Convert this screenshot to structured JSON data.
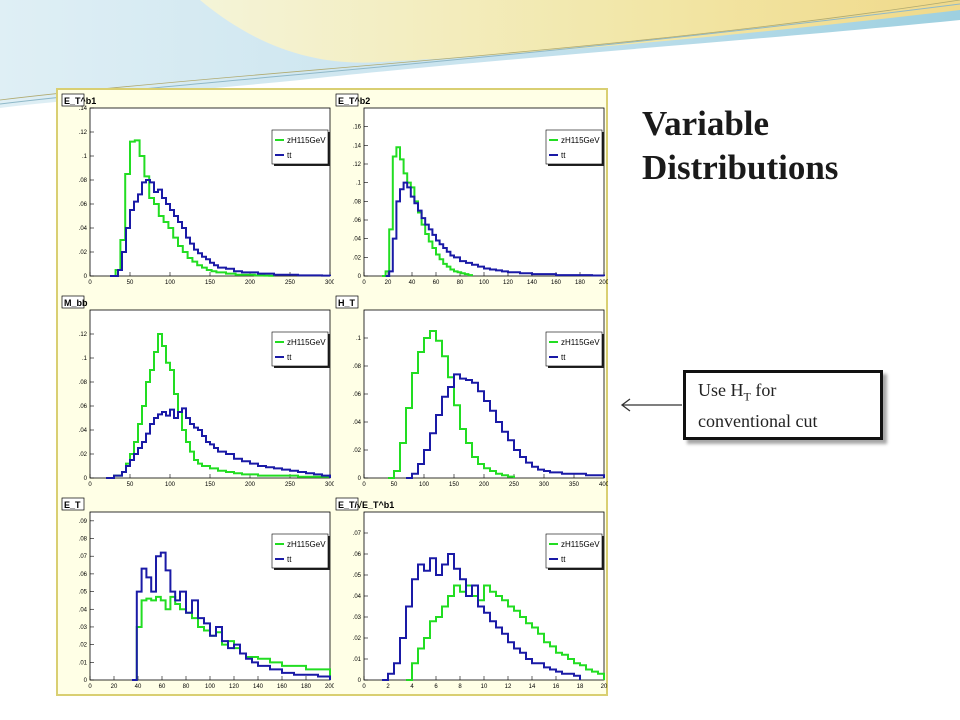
{
  "slide": {
    "title_line1": "Variable",
    "title_line2": "Distributions",
    "callout_pre": "Use H",
    "callout_sub": "T",
    "callout_post": " for",
    "callout_line2": "conventional cut",
    "colors": {
      "signal": "#22dd22",
      "background": "#1a1aa6",
      "panel_bg": "#ffffe6",
      "panel_border": "#d9cf72"
    }
  },
  "chart_data": [
    {
      "type": "line",
      "title": "E_T^b1",
      "xlim": [
        0,
        300
      ],
      "ylim": [
        0,
        0.14
      ],
      "xticks": [
        0,
        50,
        100,
        150,
        200,
        250,
        300
      ],
      "yticks": [
        0,
        0.02,
        0.04,
        0.06,
        0.08,
        0.1,
        0.12,
        0.14
      ],
      "legend": [
        "zH115GeV",
        "tt"
      ],
      "legend_position": "top-right",
      "series": [
        {
          "name": "zH115GeV",
          "x": [
            25,
            32,
            38,
            44,
            50,
            56,
            62,
            68,
            74,
            80,
            86,
            92,
            98,
            104,
            110,
            116,
            122,
            128,
            134,
            140,
            146,
            152,
            158,
            164,
            170,
            176,
            182,
            188,
            194,
            200,
            206,
            212,
            218,
            224,
            230
          ],
          "values": [
            0,
            0.005,
            0.03,
            0.085,
            0.112,
            0.113,
            0.1,
            0.083,
            0.065,
            0.06,
            0.05,
            0.045,
            0.04,
            0.032,
            0.025,
            0.02,
            0.015,
            0.012,
            0.009,
            0.007,
            0.005,
            0.004,
            0.003,
            0.003,
            0.002,
            0.002,
            0.001,
            0.001,
            0.001,
            0.001,
            0.0005,
            0.0005,
            0.0003,
            0.0002,
            0
          ]
        },
        {
          "name": "tt",
          "x": [
            25,
            35,
            40,
            45,
            50,
            55,
            60,
            65,
            70,
            75,
            80,
            85,
            90,
            95,
            100,
            105,
            110,
            115,
            120,
            125,
            130,
            135,
            140,
            145,
            150,
            155,
            160,
            170,
            180,
            190,
            200,
            210,
            220,
            230,
            240,
            250,
            260,
            270,
            280,
            290,
            300
          ],
          "values": [
            0,
            0.005,
            0.02,
            0.04,
            0.055,
            0.062,
            0.068,
            0.078,
            0.08,
            0.078,
            0.07,
            0.072,
            0.065,
            0.06,
            0.055,
            0.05,
            0.045,
            0.04,
            0.032,
            0.027,
            0.022,
            0.019,
            0.016,
            0.014,
            0.011,
            0.009,
            0.007,
            0.006,
            0.004,
            0.003,
            0.003,
            0.002,
            0.002,
            0.001,
            0.001,
            0.001,
            0.0005,
            0.0005,
            0.0005,
            0.0003,
            0
          ]
        }
      ]
    },
    {
      "type": "line",
      "title": "E_T^b2",
      "xlim": [
        0,
        200
      ],
      "ylim": [
        0,
        0.18
      ],
      "xticks": [
        0,
        20,
        40,
        60,
        80,
        100,
        120,
        140,
        160,
        180,
        200
      ],
      "yticks": [
        0,
        0.02,
        0.04,
        0.06,
        0.08,
        0.1,
        0.12,
        0.14,
        0.16
      ],
      "legend": [
        "zH115GeV",
        "tt"
      ],
      "legend_position": "top-right",
      "series": [
        {
          "name": "zH115GeV",
          "x": [
            15,
            18,
            21,
            24,
            27,
            30,
            33,
            36,
            39,
            42,
            45,
            48,
            51,
            54,
            57,
            60,
            63,
            66,
            69,
            72,
            75,
            78,
            81,
            84,
            87,
            90
          ],
          "values": [
            0,
            0.005,
            0.05,
            0.128,
            0.138,
            0.125,
            0.11,
            0.1,
            0.095,
            0.08,
            0.068,
            0.055,
            0.045,
            0.037,
            0.03,
            0.023,
            0.018,
            0.013,
            0.01,
            0.007,
            0.005,
            0.004,
            0.003,
            0.002,
            0.001,
            0
          ]
        },
        {
          "name": "tt",
          "x": [
            18,
            21,
            24,
            27,
            30,
            33,
            36,
            39,
            42,
            45,
            48,
            51,
            54,
            57,
            60,
            63,
            66,
            69,
            72,
            75,
            80,
            85,
            90,
            95,
            100,
            105,
            110,
            115,
            120,
            125,
            130,
            140,
            150,
            160,
            170,
            180,
            190,
            200
          ],
          "values": [
            0,
            0.005,
            0.04,
            0.08,
            0.093,
            0.1,
            0.095,
            0.085,
            0.078,
            0.07,
            0.062,
            0.055,
            0.05,
            0.044,
            0.038,
            0.034,
            0.03,
            0.026,
            0.022,
            0.02,
            0.016,
            0.014,
            0.012,
            0.01,
            0.008,
            0.007,
            0.006,
            0.005,
            0.004,
            0.004,
            0.003,
            0.002,
            0.002,
            0.001,
            0.001,
            0.001,
            0.0005,
            0
          ]
        }
      ]
    },
    {
      "type": "line",
      "title": "M_bb",
      "xlim": [
        0,
        300
      ],
      "ylim": [
        0,
        0.14
      ],
      "xticks": [
        0,
        50,
        100,
        150,
        200,
        250,
        300
      ],
      "yticks": [
        0,
        0.02,
        0.04,
        0.06,
        0.08,
        0.1,
        0.12
      ],
      "legend": [
        "zH115GeV",
        "tt"
      ],
      "legend_position": "top-right",
      "series": [
        {
          "name": "zH115GeV",
          "x": [
            20,
            30,
            40,
            45,
            50,
            55,
            60,
            65,
            70,
            75,
            80,
            85,
            90,
            95,
            100,
            105,
            110,
            115,
            120,
            125,
            130,
            135,
            140,
            150,
            160,
            170,
            180,
            190,
            200,
            210,
            220,
            230,
            240,
            260,
            280,
            300
          ],
          "values": [
            0,
            0.002,
            0.005,
            0.012,
            0.02,
            0.03,
            0.045,
            0.06,
            0.08,
            0.09,
            0.105,
            0.12,
            0.11,
            0.096,
            0.09,
            0.07,
            0.055,
            0.04,
            0.03,
            0.022,
            0.015,
            0.012,
            0.01,
            0.008,
            0.006,
            0.005,
            0.004,
            0.003,
            0.003,
            0.002,
            0.002,
            0.002,
            0.002,
            0.001,
            0.001,
            0
          ]
        },
        {
          "name": "tt",
          "x": [
            20,
            30,
            40,
            45,
            50,
            55,
            60,
            65,
            70,
            75,
            80,
            85,
            90,
            95,
            100,
            105,
            110,
            115,
            120,
            125,
            130,
            135,
            140,
            145,
            150,
            155,
            160,
            170,
            180,
            190,
            200,
            210,
            220,
            230,
            240,
            250,
            260,
            270,
            280,
            290,
            300
          ],
          "values": [
            0,
            0.002,
            0.005,
            0.01,
            0.015,
            0.02,
            0.025,
            0.03,
            0.037,
            0.045,
            0.05,
            0.053,
            0.055,
            0.052,
            0.057,
            0.05,
            0.055,
            0.058,
            0.05,
            0.045,
            0.042,
            0.04,
            0.035,
            0.03,
            0.028,
            0.025,
            0.022,
            0.02,
            0.016,
            0.014,
            0.012,
            0.01,
            0.009,
            0.008,
            0.007,
            0.006,
            0.005,
            0.004,
            0.003,
            0.002,
            0
          ]
        }
      ]
    },
    {
      "type": "line",
      "title": "H_T",
      "xlim": [
        0,
        400
      ],
      "ylim": [
        0,
        0.12
      ],
      "xticks": [
        0,
        50,
        100,
        150,
        200,
        250,
        300,
        350,
        400
      ],
      "yticks": [
        0,
        0.02,
        0.04,
        0.06,
        0.08,
        0.1
      ],
      "legend": [
        "zH115GeV",
        "tt"
      ],
      "legend_position": "top-right",
      "series": [
        {
          "name": "zH115GeV",
          "x": [
            40,
            50,
            60,
            70,
            80,
            90,
            100,
            110,
            120,
            130,
            140,
            150,
            160,
            170,
            180,
            190,
            200,
            210,
            220,
            230,
            240,
            250
          ],
          "values": [
            0,
            0.005,
            0.025,
            0.05,
            0.075,
            0.09,
            0.1,
            0.105,
            0.098,
            0.087,
            0.072,
            0.052,
            0.035,
            0.025,
            0.015,
            0.01,
            0.007,
            0.005,
            0.003,
            0.002,
            0.001,
            0
          ]
        },
        {
          "name": "tt",
          "x": [
            70,
            80,
            90,
            100,
            110,
            120,
            130,
            140,
            150,
            160,
            170,
            180,
            190,
            200,
            210,
            220,
            230,
            240,
            250,
            260,
            270,
            280,
            290,
            300,
            310,
            320,
            330,
            340,
            350,
            360,
            370,
            380,
            390,
            400
          ],
          "values": [
            0,
            0.003,
            0.01,
            0.02,
            0.032,
            0.045,
            0.058,
            0.065,
            0.074,
            0.071,
            0.07,
            0.068,
            0.062,
            0.055,
            0.048,
            0.04,
            0.033,
            0.027,
            0.02,
            0.015,
            0.011,
            0.008,
            0.006,
            0.005,
            0.004,
            0.004,
            0.003,
            0.003,
            0.003,
            0.003,
            0.002,
            0.002,
            0.002,
            0
          ]
        }
      ]
    },
    {
      "type": "line",
      "title": "E_T",
      "xlim": [
        0,
        200
      ],
      "ylim": [
        0,
        0.095
      ],
      "xticks": [
        0,
        20,
        40,
        60,
        80,
        100,
        120,
        140,
        160,
        180,
        200
      ],
      "yticks": [
        0,
        0.01,
        0.02,
        0.03,
        0.04,
        0.05,
        0.06,
        0.07,
        0.08,
        0.09
      ],
      "legend": [
        "zH115GeV",
        "tt"
      ],
      "legend_position": "top-right",
      "series": [
        {
          "name": "zH115GeV",
          "x": [
            35,
            39,
            43,
            47,
            51,
            55,
            59,
            63,
            67,
            71,
            75,
            80,
            85,
            90,
            95,
            100,
            105,
            110,
            115,
            120,
            125,
            130,
            140,
            150,
            160,
            170,
            180,
            190,
            200
          ],
          "values": [
            0,
            0.03,
            0.045,
            0.046,
            0.045,
            0.047,
            0.045,
            0.04,
            0.047,
            0.043,
            0.04,
            0.038,
            0.035,
            0.03,
            0.028,
            0.025,
            0.027,
            0.02,
            0.022,
            0.018,
            0.015,
            0.013,
            0.012,
            0.01,
            0.008,
            0.008,
            0.006,
            0.006,
            0
          ]
        },
        {
          "name": "tt",
          "x": [
            35,
            39,
            43,
            47,
            51,
            55,
            59,
            63,
            67,
            71,
            75,
            80,
            85,
            90,
            95,
            100,
            105,
            110,
            115,
            120,
            125,
            130,
            135,
            140,
            150,
            160,
            170,
            180,
            190,
            200
          ],
          "values": [
            0,
            0.05,
            0.063,
            0.058,
            0.05,
            0.07,
            0.072,
            0.062,
            0.05,
            0.045,
            0.05,
            0.038,
            0.045,
            0.035,
            0.032,
            0.025,
            0.03,
            0.022,
            0.018,
            0.02,
            0.015,
            0.012,
            0.01,
            0.008,
            0.006,
            0.004,
            0.003,
            0.003,
            0.002,
            0
          ]
        }
      ]
    },
    {
      "type": "line",
      "title": "E_T/√E_T^b1",
      "xlim": [
        0,
        20
      ],
      "ylim": [
        0,
        0.08
      ],
      "xticks": [
        0,
        2,
        4,
        6,
        8,
        10,
        12,
        14,
        16,
        18,
        20
      ],
      "yticks": [
        0,
        0.01,
        0.02,
        0.03,
        0.04,
        0.05,
        0.06,
        0.07
      ],
      "legend": [
        "zH115GeV",
        "tt"
      ],
      "legend_position": "top-right",
      "series": [
        {
          "name": "zH115GeV",
          "x": [
            3.5,
            4,
            4.5,
            5,
            5.5,
            6,
            6.5,
            7,
            7.5,
            8,
            8.5,
            9,
            9.5,
            10,
            10.5,
            11,
            11.5,
            12,
            12.5,
            13,
            13.5,
            14,
            14.5,
            15,
            15.5,
            16,
            16.5,
            17,
            17.5,
            18,
            18.5,
            19,
            19.5,
            20
          ],
          "values": [
            0,
            0.008,
            0.015,
            0.02,
            0.028,
            0.03,
            0.035,
            0.04,
            0.045,
            0.042,
            0.045,
            0.04,
            0.038,
            0.045,
            0.042,
            0.04,
            0.038,
            0.035,
            0.033,
            0.03,
            0.027,
            0.025,
            0.022,
            0.018,
            0.016,
            0.013,
            0.012,
            0.01,
            0.008,
            0.007,
            0.005,
            0.004,
            0.003,
            0
          ]
        },
        {
          "name": "tt",
          "x": [
            1.5,
            2,
            2.5,
            3,
            3.5,
            4,
            4.5,
            5,
            5.5,
            6,
            6.5,
            7,
            7.5,
            8,
            8.5,
            9,
            9.5,
            10,
            10.5,
            11,
            11.5,
            12,
            12.5,
            13,
            13.5,
            14,
            14.5,
            15,
            15.5,
            16,
            16.5,
            17,
            17.5,
            18
          ],
          "values": [
            0,
            0.003,
            0.008,
            0.02,
            0.035,
            0.048,
            0.055,
            0.052,
            0.058,
            0.05,
            0.055,
            0.06,
            0.053,
            0.048,
            0.04,
            0.045,
            0.035,
            0.032,
            0.028,
            0.025,
            0.022,
            0.018,
            0.015,
            0.013,
            0.01,
            0.008,
            0.008,
            0.006,
            0.005,
            0.004,
            0.003,
            0.003,
            0.002,
            0
          ]
        }
      ]
    }
  ]
}
